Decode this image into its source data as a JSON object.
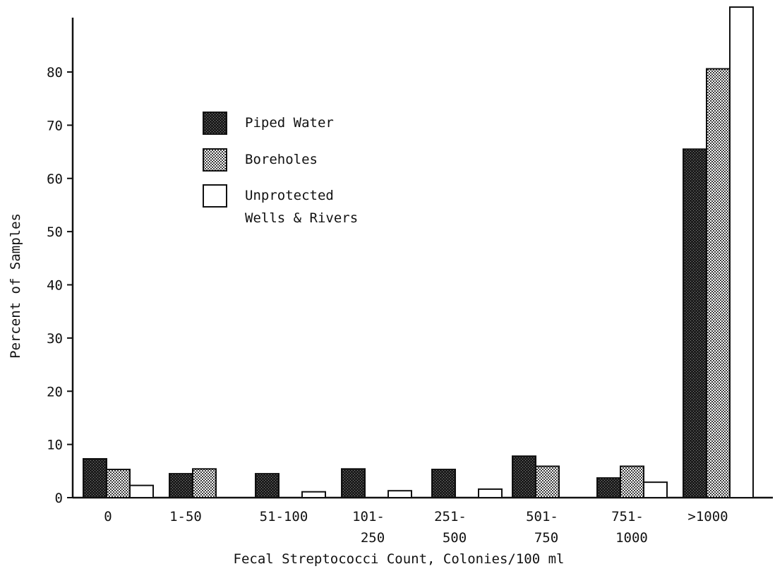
{
  "chart_data": {
    "type": "bar",
    "xlabel": "Fecal Streptococci Count, Colonies/100 ml",
    "ylabel": "Percent of Samples",
    "ylim": [
      0,
      90
    ],
    "yticks": [
      0,
      10,
      20,
      30,
      40,
      50,
      60,
      70,
      80
    ],
    "grid": false,
    "legend_position": "upper-left",
    "categories": [
      [
        "0"
      ],
      [
        "1-50"
      ],
      [
        "51-100"
      ],
      [
        "101-",
        "250"
      ],
      [
        "251-",
        "500"
      ],
      [
        "501-",
        "750"
      ],
      [
        "751-",
        "1000"
      ],
      [
        ">1000"
      ]
    ],
    "series": [
      {
        "name": "Piped Water",
        "legend_lines": [
          "Piped Water"
        ],
        "fill": "dark-stipple",
        "values": [
          7.3,
          4.5,
          4.5,
          5.4,
          5.3,
          7.8,
          3.7,
          65.5
        ]
      },
      {
        "name": "Boreholes",
        "legend_lines": [
          "Boreholes"
        ],
        "fill": "light-stipple",
        "values": [
          5.3,
          5.4,
          null,
          null,
          null,
          5.9,
          5.9,
          80.6
        ]
      },
      {
        "name": "Unprotected Wells & Rivers",
        "legend_lines": [
          "Unprotected",
          " Wells & Rivers"
        ],
        "fill": "white",
        "values": [
          2.3,
          null,
          1.1,
          1.3,
          1.6,
          null,
          2.9,
          92.2
        ]
      }
    ]
  }
}
